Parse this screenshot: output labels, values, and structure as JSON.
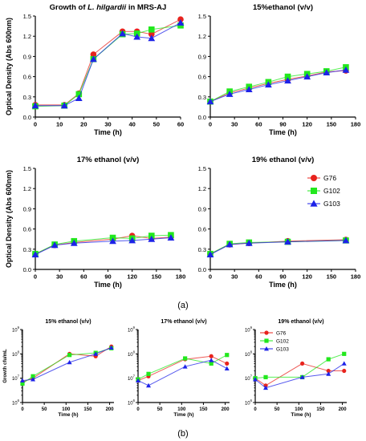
{
  "figure": {
    "label_a": "(a)",
    "label_b": "(b)"
  },
  "series_styles": [
    {
      "name": "G76",
      "color": "#e8231d",
      "marker": "circle"
    },
    {
      "name": "G102",
      "color": "#22e81d",
      "marker": "square"
    },
    {
      "name": "G103",
      "color": "#1d22e8",
      "marker": "triangle"
    }
  ],
  "chart_data": [
    {
      "id": "a1",
      "type": "line",
      "title_parts": [
        {
          "t": "Growth of "
        },
        {
          "t": "L. hilgardii",
          "i": true
        },
        {
          "t": " in MRS-AJ"
        }
      ],
      "xlabel": "Time (h)",
      "ylabel": "Optical Density (Abs 600nm)",
      "xlim": [
        0,
        60
      ],
      "ylim": [
        0,
        1.5
      ],
      "xticks": [
        "0",
        "10",
        "20",
        "30",
        "40",
        "50",
        "60"
      ],
      "yticks": [
        "0.0",
        "0.3",
        "0.6",
        "0.9",
        "1.2",
        "1.5"
      ],
      "series": [
        {
          "name": "G76",
          "x": [
            0,
            12,
            18,
            24,
            36,
            42,
            48,
            60
          ],
          "y": [
            0.18,
            0.18,
            0.35,
            0.93,
            1.27,
            1.27,
            1.23,
            1.45
          ]
        },
        {
          "name": "G102",
          "x": [
            0,
            12,
            18,
            24,
            36,
            42,
            48,
            60
          ],
          "y": [
            0.16,
            0.17,
            0.34,
            0.86,
            1.23,
            1.24,
            1.3,
            1.36
          ]
        },
        {
          "name": "G103",
          "x": [
            0,
            12,
            18,
            24,
            36,
            42,
            48,
            60
          ],
          "y": [
            0.17,
            0.17,
            0.28,
            0.86,
            1.24,
            1.19,
            1.17,
            1.4
          ]
        }
      ]
    },
    {
      "id": "a2",
      "type": "line",
      "title_parts": [
        {
          "t": "15%ethanol (v/v)"
        }
      ],
      "xlabel": "Time (h)",
      "ylabel": "",
      "xlim": [
        0,
        180
      ],
      "ylim": [
        0,
        1.5
      ],
      "xticks": [
        "0",
        "30",
        "60",
        "90",
        "120",
        "150",
        "180"
      ],
      "yticks": [
        "0.0",
        "0.3",
        "0.6",
        "0.9",
        "1.2",
        "1.5"
      ],
      "series": [
        {
          "name": "G76",
          "x": [
            0,
            24,
            48,
            72,
            96,
            120,
            144,
            168
          ],
          "y": [
            0.23,
            0.36,
            0.43,
            0.5,
            0.56,
            0.61,
            0.67,
            0.69
          ]
        },
        {
          "name": "G102",
          "x": [
            0,
            24,
            48,
            72,
            96,
            120,
            144,
            168
          ],
          "y": [
            0.23,
            0.38,
            0.45,
            0.52,
            0.6,
            0.64,
            0.68,
            0.74
          ]
        },
        {
          "name": "G103",
          "x": [
            0,
            24,
            48,
            72,
            96,
            120,
            144,
            168
          ],
          "y": [
            0.23,
            0.34,
            0.41,
            0.48,
            0.54,
            0.6,
            0.66,
            0.7
          ]
        }
      ]
    },
    {
      "id": "a3",
      "type": "line",
      "title_parts": [
        {
          "t": "17% ethanol (v/v)"
        }
      ],
      "xlabel": "Time (h)",
      "ylabel": "Optical Density (Abs 600nm)",
      "xlim": [
        0,
        180
      ],
      "ylim": [
        0,
        1.5
      ],
      "xticks": [
        "0",
        "30",
        "60",
        "90",
        "120",
        "150",
        "180"
      ],
      "yticks": [
        "0.0",
        "0.3",
        "0.6",
        "0.9",
        "1.2",
        "1.5"
      ],
      "series": [
        {
          "name": "G76",
          "x": [
            0,
            24,
            48,
            96,
            120,
            144,
            168
          ],
          "y": [
            0.23,
            0.36,
            0.4,
            0.45,
            0.5,
            0.46,
            0.48
          ]
        },
        {
          "name": "G102",
          "x": [
            0,
            24,
            48,
            96,
            120,
            144,
            168
          ],
          "y": [
            0.23,
            0.37,
            0.42,
            0.47,
            0.46,
            0.5,
            0.51
          ]
        },
        {
          "name": "G103",
          "x": [
            0,
            24,
            48,
            96,
            120,
            144,
            168
          ],
          "y": [
            0.22,
            0.36,
            0.39,
            0.42,
            0.43,
            0.45,
            0.47
          ]
        }
      ]
    },
    {
      "id": "a4",
      "type": "line",
      "title_parts": [
        {
          "t": "19% ethanol (v/v)"
        }
      ],
      "xlabel": "Time (h)",
      "ylabel": "",
      "xlim": [
        0,
        180
      ],
      "ylim": [
        0,
        1.5
      ],
      "xticks": [
        "0",
        "30",
        "60",
        "90",
        "120",
        "150",
        "180"
      ],
      "yticks": [
        "0.0",
        "0.3",
        "0.6",
        "0.9",
        "1.2",
        "1.5"
      ],
      "legend": {
        "position": "right",
        "entries": [
          "G76",
          "G102",
          "G103"
        ]
      },
      "series": [
        {
          "name": "G76",
          "x": [
            0,
            24,
            48,
            96,
            168
          ],
          "y": [
            0.23,
            0.37,
            0.39,
            0.42,
            0.44
          ]
        },
        {
          "name": "G102",
          "x": [
            0,
            24,
            48,
            96,
            168
          ],
          "y": [
            0.23,
            0.38,
            0.4,
            0.41,
            0.43
          ]
        },
        {
          "name": "G103",
          "x": [
            0,
            24,
            48,
            96,
            168
          ],
          "y": [
            0.22,
            0.37,
            0.39,
            0.41,
            0.43
          ]
        }
      ]
    },
    {
      "id": "b1",
      "type": "line",
      "scale": "log",
      "title_parts": [
        {
          "t": "15% ethanol (v/v)"
        }
      ],
      "xlabel": "Time (h)",
      "ylabel": "Growth cfu/mL",
      "xlim": [
        0,
        210
      ],
      "ylim_exp": [
        6,
        9
      ],
      "xticks": [
        "0",
        "50",
        "100",
        "150",
        "200"
      ],
      "series": [
        {
          "name": "G76",
          "x": [
            0,
            24,
            108,
            168,
            204
          ],
          "y": [
            7000000,
            10000000,
            100000000,
            80000000,
            200000000
          ]
        },
        {
          "name": "G102",
          "x": [
            0,
            24,
            108,
            168,
            204
          ],
          "y": [
            6000000,
            12000000,
            90000000,
            110000000,
            170000000
          ]
        },
        {
          "name": "G103",
          "x": [
            0,
            24,
            108,
            168,
            204
          ],
          "y": [
            8000000,
            9000000,
            45000000,
            100000000,
            180000000
          ]
        }
      ]
    },
    {
      "id": "b2",
      "type": "line",
      "scale": "log",
      "title_parts": [
        {
          "t": "17% ethanol (v/v)"
        }
      ],
      "xlabel": "Time (h)",
      "ylabel": "",
      "xlim": [
        0,
        210
      ],
      "ylim_exp": [
        6,
        9
      ],
      "xticks": [
        "0",
        "50",
        "100",
        "150",
        "200"
      ],
      "series": [
        {
          "name": "G76",
          "x": [
            0,
            24,
            108,
            168,
            204
          ],
          "y": [
            8000000,
            12000000,
            60000000,
            80000000,
            40000000
          ]
        },
        {
          "name": "G102",
          "x": [
            0,
            24,
            108,
            168,
            204
          ],
          "y": [
            9000000,
            15000000,
            65000000,
            40000000,
            90000000
          ]
        },
        {
          "name": "G103",
          "x": [
            0,
            24,
            108,
            168,
            204
          ],
          "y": [
            8000000,
            5000000,
            30000000,
            55000000,
            25000000
          ]
        }
      ]
    },
    {
      "id": "b3",
      "type": "line",
      "scale": "log",
      "title_parts": [
        {
          "t": "19% ethanol (v/v)"
        }
      ],
      "xlabel": "Time (h)",
      "ylabel": "",
      "xlim": [
        0,
        210
      ],
      "ylim_exp": [
        6,
        9
      ],
      "xticks": [
        "0",
        "50",
        "100",
        "150",
        "200"
      ],
      "legend": {
        "position": "top-left",
        "entries": [
          "G76",
          "G102",
          "G103"
        ]
      },
      "series": [
        {
          "name": "G76",
          "x": [
            0,
            24,
            108,
            168,
            204
          ],
          "y": [
            10000000,
            5000000,
            40000000,
            20000000,
            20000000
          ]
        },
        {
          "name": "G102",
          "x": [
            0,
            24,
            108,
            168,
            204
          ],
          "y": [
            10000000,
            11000000,
            11000000,
            60000000,
            100000000
          ]
        },
        {
          "name": "G103",
          "x": [
            0,
            24,
            108,
            168,
            204
          ],
          "y": [
            9000000,
            4000000,
            11000000,
            15000000,
            40000000
          ]
        }
      ]
    }
  ]
}
